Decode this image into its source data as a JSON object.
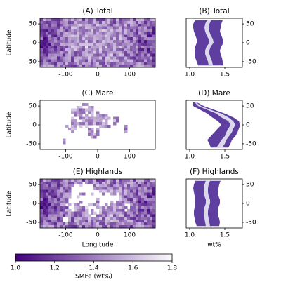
{
  "chart_data": [
    {
      "type": "map",
      "title": "(A) Total",
      "ylabel": "Latitude",
      "xlim": [
        -180,
        180
      ],
      "ylim": [
        -65,
        65
      ],
      "xticks": [
        -100,
        0,
        100
      ],
      "yticks": [
        -50,
        0,
        50
      ]
    },
    {
      "type": "profile",
      "title": "(B) Total",
      "y": [
        -60,
        -50,
        -40,
        -30,
        -20,
        -10,
        0,
        10,
        20,
        30,
        40,
        50,
        60
      ],
      "bands": [
        {
          "color": "#5e3fa0",
          "low": [
            1.12,
            1.1,
            1.08,
            1.07,
            1.07,
            1.08,
            1.1,
            1.1,
            1.08,
            1.06,
            1.05,
            1.05,
            1.08
          ],
          "high": [
            1.47,
            1.47,
            1.46,
            1.44,
            1.43,
            1.45,
            1.48,
            1.47,
            1.45,
            1.43,
            1.44,
            1.45,
            1.47
          ]
        },
        {
          "color": "#dcd8ec",
          "low": [
            1.27,
            1.26,
            1.24,
            1.22,
            1.22,
            1.24,
            1.28,
            1.27,
            1.24,
            1.22,
            1.21,
            1.22,
            1.25
          ],
          "high": [
            1.33,
            1.32,
            1.3,
            1.28,
            1.28,
            1.3,
            1.34,
            1.33,
            1.3,
            1.28,
            1.27,
            1.28,
            1.31
          ]
        }
      ],
      "xlim": [
        0.95,
        1.75
      ],
      "ylim": [
        -65,
        65
      ],
      "xticks": [
        {
          "value": 1,
          "label": "1.0"
        },
        1.5
      ],
      "yticks": [
        -50,
        0,
        50
      ]
    },
    {
      "type": "map",
      "title": "(C) Mare",
      "ylabel": "Latitude",
      "xlim": [
        -180,
        180
      ],
      "ylim": [
        -65,
        65
      ],
      "xticks": [
        -100,
        0,
        100
      ],
      "yticks": [
        -50,
        0,
        50
      ]
    },
    {
      "type": "profile",
      "title": "(D) Mare",
      "y": [
        -60,
        -50,
        -40,
        -30,
        -20,
        -10,
        0,
        10,
        20,
        30,
        40,
        50,
        60
      ],
      "bands": [
        {
          "color": "#5e3fa0",
          "low": [
            1.3,
            1.28,
            1.25,
            1.3,
            1.35,
            1.4,
            1.45,
            1.4,
            1.32,
            1.25,
            1.15,
            1.05,
            1.05
          ],
          "high": [
            1.55,
            1.58,
            1.6,
            1.65,
            1.68,
            1.7,
            1.72,
            1.7,
            1.62,
            1.5,
            1.35,
            1.2,
            1.1
          ]
        },
        {
          "color": "#dcd8ec",
          "low": [
            1.38,
            1.42,
            1.45,
            1.5,
            1.52,
            1.55,
            1.58,
            1.55,
            1.45,
            1.38,
            1.25,
            1.12,
            1.07
          ],
          "high": [
            1.46,
            1.5,
            1.52,
            1.56,
            1.6,
            1.62,
            1.65,
            1.62,
            1.55,
            1.45,
            1.3,
            1.16,
            1.09
          ]
        }
      ],
      "xlim": [
        0.95,
        1.75
      ],
      "ylim": [
        -65,
        65
      ],
      "xticks": [
        {
          "value": 1,
          "label": "1.0"
        },
        1.5
      ],
      "yticks": [
        -50,
        0,
        50
      ]
    },
    {
      "type": "map",
      "title": "(E) Highlands",
      "ylabel": "Latitude",
      "xlabel": "Longitude",
      "xlim": [
        -180,
        180
      ],
      "ylim": [
        -65,
        65
      ],
      "xticks": [
        -100,
        0,
        100
      ],
      "yticks": [
        -50,
        0,
        50
      ]
    },
    {
      "type": "profile",
      "title": "(F) Highlands",
      "xlabel": "wt%",
      "y": [
        -60,
        -50,
        -40,
        -30,
        -20,
        -10,
        0,
        10,
        20,
        30,
        40,
        50,
        60
      ],
      "bands": [
        {
          "color": "#5e3fa0",
          "low": [
            1.1,
            1.08,
            1.07,
            1.06,
            1.06,
            1.07,
            1.08,
            1.08,
            1.07,
            1.06,
            1.05,
            1.06,
            1.08
          ],
          "high": [
            1.42,
            1.43,
            1.42,
            1.4,
            1.4,
            1.41,
            1.43,
            1.43,
            1.41,
            1.4,
            1.41,
            1.42,
            1.44
          ]
        },
        {
          "color": "#dcd8ec",
          "low": [
            1.23,
            1.22,
            1.21,
            1.2,
            1.2,
            1.21,
            1.23,
            1.23,
            1.21,
            1.2,
            1.2,
            1.21,
            1.23
          ],
          "high": [
            1.29,
            1.28,
            1.27,
            1.26,
            1.26,
            1.27,
            1.29,
            1.29,
            1.27,
            1.26,
            1.26,
            1.27,
            1.29
          ]
        }
      ],
      "xlim": [
        0.95,
        1.75
      ],
      "ylim": [
        -65,
        65
      ],
      "xticks": [
        {
          "value": 1,
          "label": "1.0"
        },
        1.5
      ],
      "yticks": [
        -50,
        0,
        50
      ]
    }
  ],
  "colorbar": {
    "label": "SMFe (wt%)",
    "colors": [
      "#3f007d",
      "#fcfbfd"
    ],
    "lim": [
      1,
      1.8
    ],
    "ticks": [
      {
        "value": 1,
        "label": "1.0"
      },
      1.2,
      1.4,
      1.6,
      1.8
    ]
  }
}
